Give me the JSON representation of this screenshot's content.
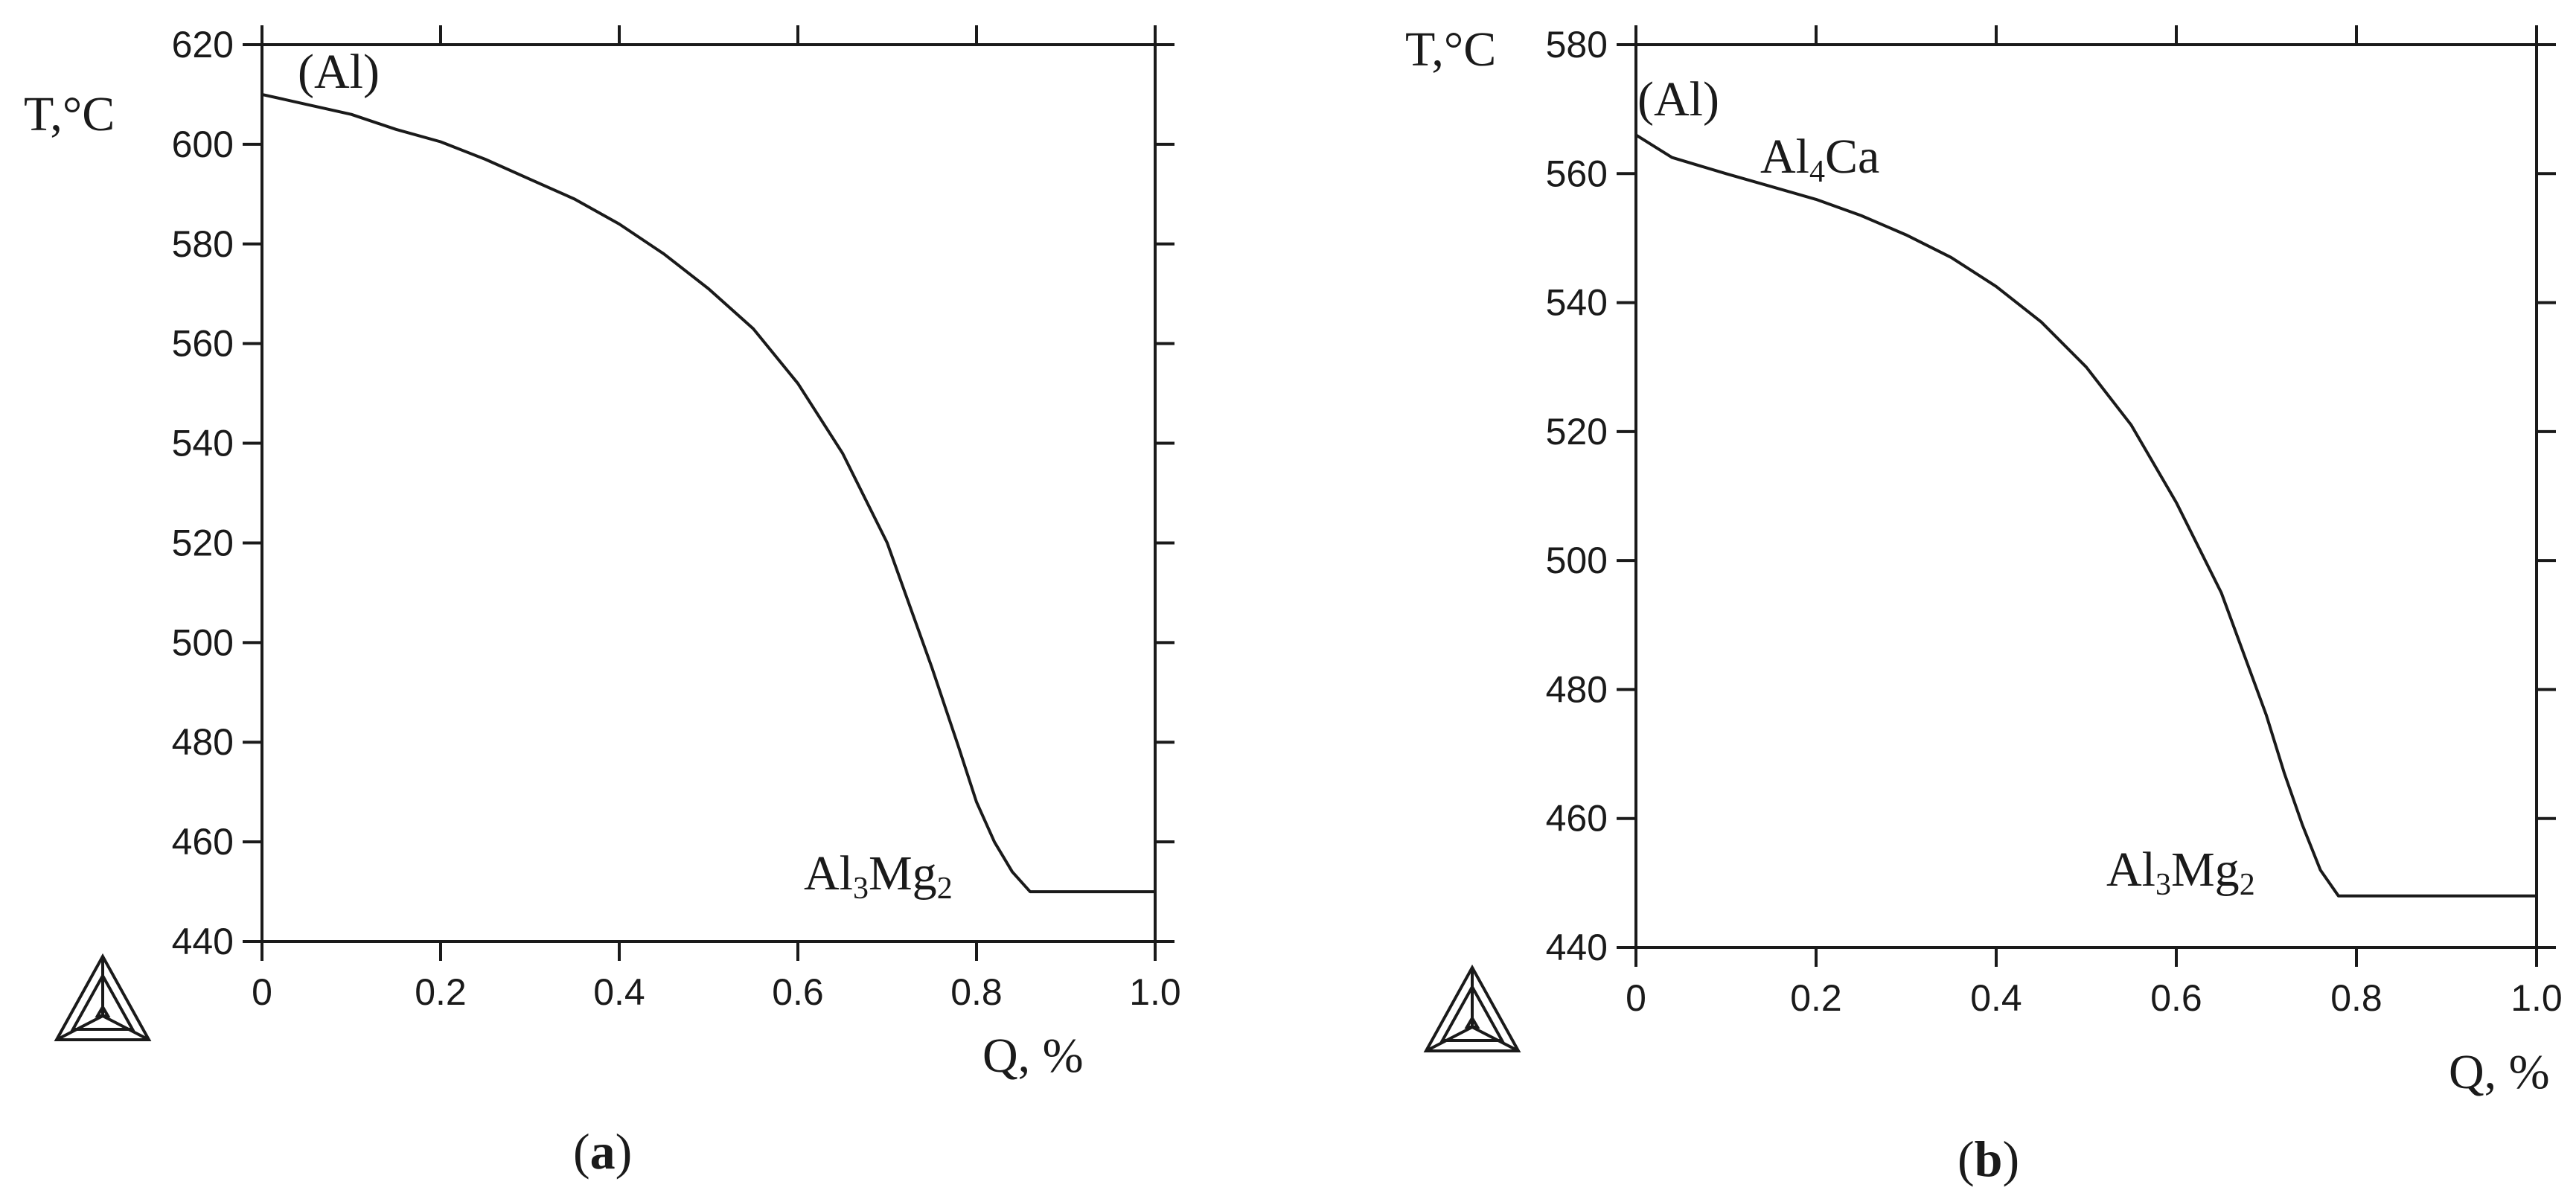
{
  "chart_data": [
    {
      "type": "line",
      "panel_label": "a",
      "ylabel": "T,°C",
      "xlabel": "Q, %",
      "xlim": [
        0,
        1.0
      ],
      "ylim": [
        440,
        620
      ],
      "x_ticks": [
        "0",
        "0.2",
        "0.4",
        "0.6",
        "0.8",
        "1.0"
      ],
      "y_ticks": [
        "440",
        "460",
        "480",
        "500",
        "520",
        "540",
        "560",
        "580",
        "600",
        "620"
      ],
      "annotations": [
        {
          "text": "(Al)"
        },
        {
          "text": "Al",
          "sub": "3",
          "text2": "Mg",
          "sub2": "2"
        }
      ],
      "series": [
        {
          "x": [
            0,
            0.05,
            0.1,
            0.15,
            0.2,
            0.25,
            0.3,
            0.35,
            0.4,
            0.45,
            0.5,
            0.55,
            0.6,
            0.65,
            0.7,
            0.72,
            0.75,
            0.78,
            0.8,
            0.82,
            0.84,
            0.86,
            0.9,
            0.95,
            1.0
          ],
          "y": [
            610,
            608,
            606,
            603,
            600.5,
            597,
            593,
            589,
            584,
            578,
            571,
            563,
            552,
            538,
            520,
            510,
            495,
            479,
            468,
            460,
            454,
            450,
            450,
            450,
            450
          ]
        }
      ]
    },
    {
      "type": "line",
      "panel_label": "b",
      "ylabel": "T,°C",
      "xlabel": "Q, %",
      "xlim": [
        0,
        1.0
      ],
      "ylim": [
        440,
        580
      ],
      "x_ticks": [
        "0",
        "0.2",
        "0.4",
        "0.6",
        "0.8",
        "1.0"
      ],
      "y_ticks": [
        "440",
        "460",
        "480",
        "500",
        "520",
        "540",
        "560",
        "580"
      ],
      "annotations": [
        {
          "text": "(Al)"
        },
        {
          "text": "Al",
          "sub": "4",
          "text2": "Ca",
          "sub2": ""
        },
        {
          "text": "Al",
          "sub": "3",
          "text2": "Mg",
          "sub2": "2"
        }
      ],
      "series": [
        {
          "x": [
            0,
            0.04,
            0.1,
            0.15,
            0.2,
            0.25,
            0.3,
            0.35,
            0.4,
            0.45,
            0.5,
            0.55,
            0.6,
            0.65,
            0.7,
            0.72,
            0.74,
            0.76,
            0.78,
            0.8,
            0.9,
            1.0
          ],
          "y": [
            566,
            562.5,
            560,
            558,
            556,
            553.5,
            550.5,
            547,
            542.5,
            537,
            530,
            521,
            509,
            495,
            476,
            467,
            459,
            452,
            448,
            448,
            448,
            448
          ]
        }
      ]
    }
  ]
}
